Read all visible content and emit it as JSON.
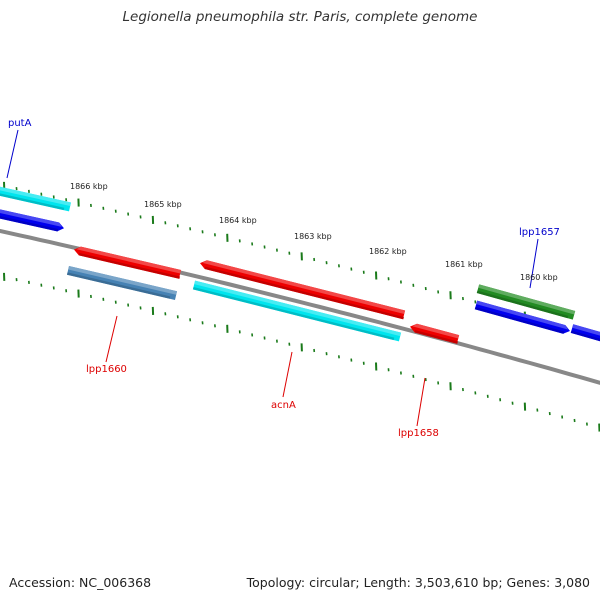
{
  "title": "Legionella pneumophila str. Paris, complete genome",
  "accession_text": "Accession: NC_006368",
  "summary_text": "Topology: circular; Length: 3,503,610 bp; Genes: 3,080",
  "colors": {
    "backbone": "#888888",
    "ticks": "#1a7a1a",
    "label_forward": "#0000cc",
    "label_reverse": "#dd0000",
    "cyan": "#00e5ee",
    "blue": "#0000ee",
    "red": "#ee0000",
    "steel": "#4682b4",
    "green": "#228b22"
  },
  "scale_labels": [
    "1866 kbp",
    "1865 kbp",
    "1864 kbp",
    "1863 kbp",
    "1862 kbp",
    "1861 kbp",
    "1860 kbp"
  ],
  "gene_labels": [
    {
      "name": "putA",
      "strand": "forward"
    },
    {
      "name": "lpp1657",
      "strand": "forward"
    },
    {
      "name": "lpp1660",
      "strand": "reverse"
    },
    {
      "name": "acnA",
      "strand": "reverse"
    },
    {
      "name": "lpp1658",
      "strand": "reverse"
    }
  ],
  "features": [
    {
      "id": "putA-cds",
      "color_key": "cyan",
      "strand": "forward",
      "arrow": "none"
    },
    {
      "id": "putA-gene",
      "color_key": "blue",
      "strand": "forward",
      "arrow": "end"
    },
    {
      "id": "lpp1660-gene",
      "color_key": "red",
      "strand": "reverse",
      "arrow": "start"
    },
    {
      "id": "lpp1660-cds",
      "color_key": "steel",
      "strand": "reverse",
      "arrow": "none"
    },
    {
      "id": "acnA-gene",
      "color_key": "red",
      "strand": "reverse",
      "arrow": "start"
    },
    {
      "id": "acnA-cds",
      "color_key": "cyan",
      "strand": "reverse",
      "arrow": "none"
    },
    {
      "id": "lpp1658-gene",
      "color_key": "red",
      "strand": "reverse",
      "arrow": "start"
    },
    {
      "id": "lpp1657-cds",
      "color_key": "green",
      "strand": "forward",
      "arrow": "none"
    },
    {
      "id": "lpp1657-gene",
      "color_key": "blue",
      "strand": "forward",
      "arrow": "end"
    },
    {
      "id": "next-gene",
      "color_key": "blue",
      "strand": "forward",
      "arrow": "none"
    }
  ]
}
